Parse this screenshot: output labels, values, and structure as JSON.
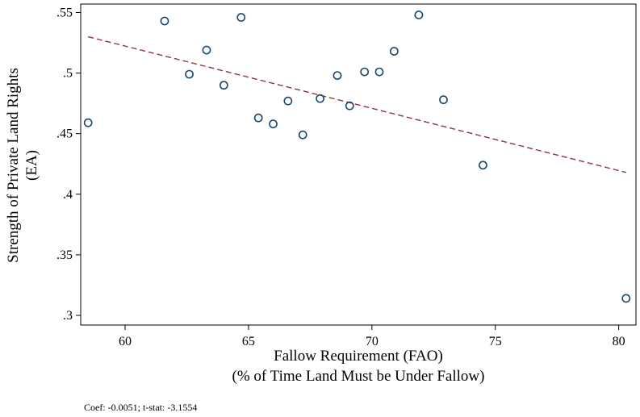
{
  "chart_data": {
    "type": "scatter",
    "xlabel_lines": [
      "Fallow Requirement (FAO)",
      "(% of Time Land Must be Under Fallow)"
    ],
    "ylabel_lines": [
      "Strength of Private Land Rights",
      "(EA)"
    ],
    "x_ticks": [
      60,
      65,
      70,
      75,
      80
    ],
    "x_tick_labels": [
      "60",
      "65",
      "70",
      "75",
      "80"
    ],
    "y_ticks": [
      0.3,
      0.35,
      0.4,
      0.45,
      0.5,
      0.55
    ],
    "y_tick_labels": [
      ".3",
      ".35",
      ".4",
      ".45",
      ".5",
      ".55"
    ],
    "xlim": [
      58.2,
      80.7
    ],
    "ylim": [
      0.292,
      0.557
    ],
    "grid": false,
    "points": [
      {
        "x": 58.5,
        "y": 0.459
      },
      {
        "x": 61.6,
        "y": 0.543
      },
      {
        "x": 62.6,
        "y": 0.499
      },
      {
        "x": 63.3,
        "y": 0.519
      },
      {
        "x": 64.0,
        "y": 0.49
      },
      {
        "x": 64.7,
        "y": 0.546
      },
      {
        "x": 65.4,
        "y": 0.463
      },
      {
        "x": 66.0,
        "y": 0.458
      },
      {
        "x": 66.6,
        "y": 0.477
      },
      {
        "x": 67.2,
        "y": 0.449
      },
      {
        "x": 67.9,
        "y": 0.479
      },
      {
        "x": 68.6,
        "y": 0.498
      },
      {
        "x": 69.1,
        "y": 0.473
      },
      {
        "x": 69.7,
        "y": 0.501
      },
      {
        "x": 70.3,
        "y": 0.501
      },
      {
        "x": 70.9,
        "y": 0.518
      },
      {
        "x": 71.9,
        "y": 0.548
      },
      {
        "x": 72.9,
        "y": 0.478
      },
      {
        "x": 74.5,
        "y": 0.424
      },
      {
        "x": 80.3,
        "y": 0.314
      }
    ],
    "fit_line": {
      "x": [
        58.5,
        80.3
      ],
      "y": [
        0.53,
        0.418
      ]
    },
    "colors": {
      "marker_stroke": "#1a476f",
      "fit_line": "#90353b",
      "axis": "#000000"
    }
  },
  "note": "Coef: -0.0051; t-stat: -3.1554"
}
